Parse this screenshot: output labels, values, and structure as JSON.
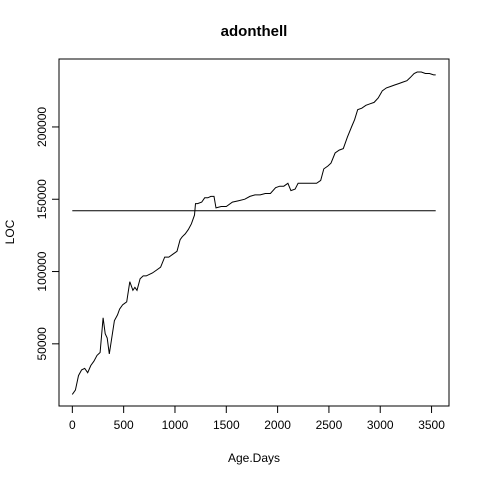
{
  "chart_data": {
    "type": "line",
    "title": "adonthell",
    "xlabel": "Age.Days",
    "ylabel": "LOC",
    "xlim": [
      -130,
      3670
    ],
    "ylim": [
      7000,
      247000
    ],
    "xticks": [
      0,
      500,
      1000,
      1500,
      2000,
      2500,
      3000,
      3500
    ],
    "yticks": [
      50000,
      100000,
      150000,
      200000
    ],
    "xtick_labels": [
      "0",
      "500",
      "1000",
      "1500",
      "2000",
      "2500",
      "3000",
      "3500"
    ],
    "ytick_labels": [
      "50000",
      "100000",
      "150000",
      "200000"
    ],
    "grid": false,
    "series": [
      {
        "values_x": [
          0,
          30,
          60,
          90,
          120,
          150,
          180,
          210,
          240,
          270,
          300,
          320,
          340,
          360,
          380,
          410,
          440,
          460,
          490,
          510,
          530,
          560,
          590,
          610,
          630,
          660,
          690,
          720,
          750,
          780,
          820,
          860,
          900,
          940,
          980,
          1020,
          1050,
          1070,
          1100,
          1130,
          1160,
          1190,
          1200,
          1220,
          1260,
          1290,
          1320,
          1350,
          1380,
          1400,
          1450,
          1500,
          1560,
          1620,
          1680,
          1730,
          1780,
          1830,
          1880,
          1930,
          1980,
          2020,
          2060,
          2100,
          2130,
          2170,
          2200,
          2240,
          2290,
          2330,
          2380,
          2420,
          2450,
          2490,
          2520,
          2560,
          2600,
          2640,
          2680,
          2720,
          2750,
          2780,
          2820,
          2860,
          2900,
          2940,
          2980,
          3020,
          3060,
          3100,
          3140,
          3180,
          3220,
          3260,
          3290,
          3330,
          3360,
          3400,
          3440,
          3480,
          3520,
          3540
        ],
        "values_y": [
          15000,
          18000,
          28000,
          32000,
          33000,
          30000,
          35000,
          38000,
          42000,
          44000,
          68000,
          57000,
          54000,
          43000,
          52000,
          66000,
          70000,
          74000,
          77000,
          78000,
          79000,
          93000,
          87000,
          89000,
          87000,
          95000,
          97000,
          97000,
          98000,
          99000,
          101000,
          103000,
          110000,
          110000,
          112000,
          114000,
          122000,
          124000,
          126000,
          129000,
          133000,
          139000,
          147000,
          147000,
          148000,
          151000,
          151000,
          152000,
          152000,
          144000,
          145000,
          145000,
          148000,
          149000,
          150000,
          152000,
          153000,
          153000,
          154000,
          154000,
          158000,
          159000,
          159000,
          161000,
          156000,
          157000,
          161000,
          161000,
          161000,
          161000,
          161000,
          163000,
          171000,
          173000,
          175000,
          182000,
          184000,
          185000,
          193000,
          200000,
          205000,
          212000,
          213000,
          215000,
          216000,
          217000,
          220000,
          225000,
          227000,
          228000,
          229000,
          230000,
          231000,
          232000,
          234000,
          237000,
          238000,
          238000,
          237000,
          237000,
          236000,
          236000
        ]
      },
      {
        "values_x": [
          0,
          3540
        ],
        "values_y": [
          142000,
          142000
        ]
      }
    ]
  }
}
